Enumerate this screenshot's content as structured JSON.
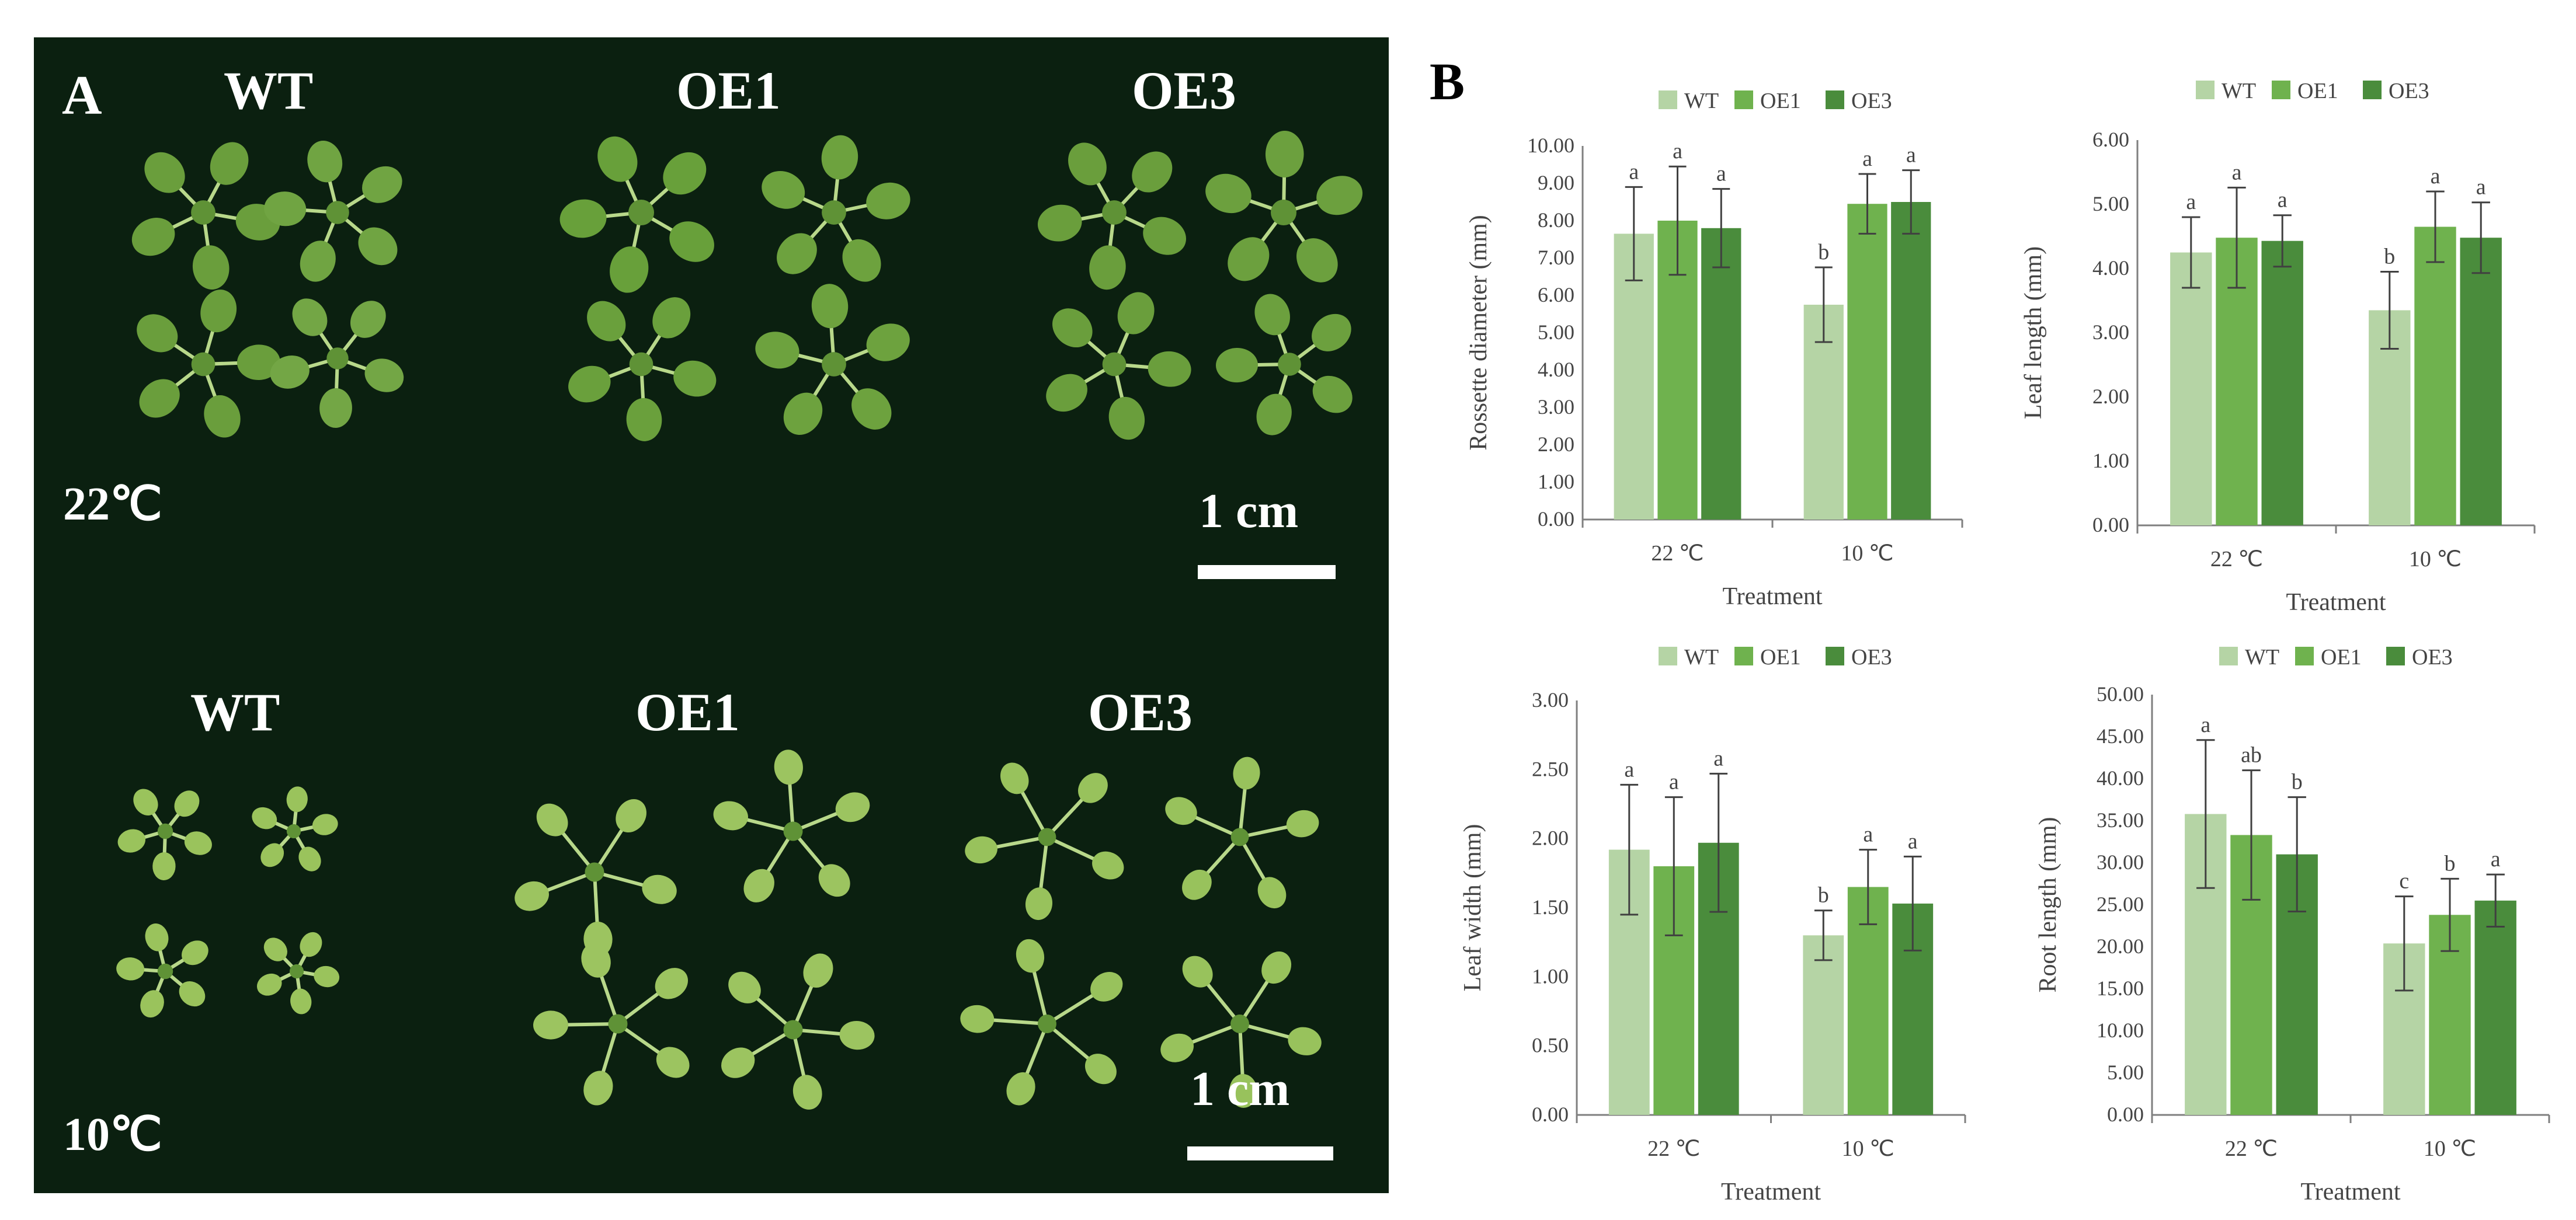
{
  "colors": {
    "photo_background": "#0b2010",
    "WT": "#b5d4a5",
    "OE1": "#6fb24e",
    "OE3": "#4a8c3c"
  },
  "panel_a": {
    "letter": "A",
    "top_row": {
      "genotypes": [
        "WT",
        "OE1",
        "OE3"
      ],
      "temperature": "22℃",
      "scale_label": "1 cm"
    },
    "bottom_row": {
      "genotypes": [
        "WT",
        "OE1",
        "OE3"
      ],
      "temperature": "10℃",
      "scale_label": "1 cm"
    }
  },
  "panel_b": {
    "letter": "B"
  },
  "chart_data": [
    {
      "type": "bar",
      "categories": [
        "22 ℃",
        "10 ℃"
      ],
      "xlabel": "Treatment",
      "ylabel": "Rossette diameter (mm)",
      "ylim": [
        0,
        10
      ],
      "yticks": [
        "0.00",
        "1.00",
        "2.00",
        "3.00",
        "4.00",
        "5.00",
        "6.00",
        "7.00",
        "8.00",
        "9.00",
        "10.00"
      ],
      "legend_position": "top",
      "series": [
        {
          "name": "WT",
          "values": [
            7.65,
            5.75
          ],
          "errors": [
            1.25,
            1.0
          ],
          "letters": [
            "a",
            "b"
          ]
        },
        {
          "name": "OE1",
          "values": [
            8.0,
            8.45
          ],
          "errors": [
            1.45,
            0.8
          ],
          "letters": [
            "a",
            "a"
          ]
        },
        {
          "name": "OE3",
          "values": [
            7.8,
            8.5
          ],
          "errors": [
            1.05,
            0.85
          ],
          "letters": [
            "a",
            "a"
          ]
        }
      ]
    },
    {
      "type": "bar",
      "categories": [
        "22 ℃",
        "10 ℃"
      ],
      "xlabel": "Treatment",
      "ylabel": "Leaf length (mm)",
      "ylim": [
        0,
        6
      ],
      "yticks": [
        "0.00",
        "1.00",
        "2.00",
        "3.00",
        "4.00",
        "5.00",
        "6.00"
      ],
      "legend_position": "top",
      "series": [
        {
          "name": "WT",
          "values": [
            4.25,
            3.35
          ],
          "errors": [
            0.55,
            0.6
          ],
          "letters": [
            "a",
            "b"
          ]
        },
        {
          "name": "OE1",
          "values": [
            4.48,
            4.65
          ],
          "errors": [
            0.78,
            0.55
          ],
          "letters": [
            "a",
            "a"
          ]
        },
        {
          "name": "OE3",
          "values": [
            4.43,
            4.48
          ],
          "errors": [
            0.4,
            0.55
          ],
          "letters": [
            "a",
            "a"
          ]
        }
      ]
    },
    {
      "type": "bar",
      "categories": [
        "22 ℃",
        "10 ℃"
      ],
      "xlabel": "Treatment",
      "ylabel": "Leaf width (mm)",
      "ylim": [
        0,
        3
      ],
      "yticks": [
        "0.00",
        "0.50",
        "1.00",
        "1.50",
        "2.00",
        "2.50",
        "3.00"
      ],
      "legend_position": "top",
      "series": [
        {
          "name": "WT",
          "values": [
            1.92,
            1.3
          ],
          "errors": [
            0.47,
            0.18
          ],
          "letters": [
            "a",
            "b"
          ]
        },
        {
          "name": "OE1",
          "values": [
            1.8,
            1.65
          ],
          "errors": [
            0.5,
            0.27
          ],
          "letters": [
            "a",
            "a"
          ]
        },
        {
          "name": "OE3",
          "values": [
            1.97,
            1.53
          ],
          "errors": [
            0.5,
            0.34
          ],
          "letters": [
            "a",
            "a"
          ]
        }
      ]
    },
    {
      "type": "bar",
      "categories": [
        "22 ℃",
        "10 ℃"
      ],
      "xlabel": "Treatment",
      "ylabel": "Root length (mm)",
      "ylim": [
        0,
        50
      ],
      "yticks": [
        "0.00",
        "5.00",
        "10.00",
        "15.00",
        "20.00",
        "25.00",
        "30.00",
        "35.00",
        "40.00",
        "45.00",
        "50.00"
      ],
      "legend_position": "top",
      "series": [
        {
          "name": "WT",
          "values": [
            35.8,
            20.4
          ],
          "errors": [
            8.8,
            5.6
          ],
          "letters": [
            "a",
            "c"
          ]
        },
        {
          "name": "OE1",
          "values": [
            33.3,
            23.8
          ],
          "errors": [
            7.7,
            4.3
          ],
          "letters": [
            "ab",
            "b"
          ]
        },
        {
          "name": "OE3",
          "values": [
            31.0,
            25.5
          ],
          "errors": [
            6.8,
            3.1
          ],
          "letters": [
            "b",
            "a"
          ]
        }
      ]
    }
  ]
}
